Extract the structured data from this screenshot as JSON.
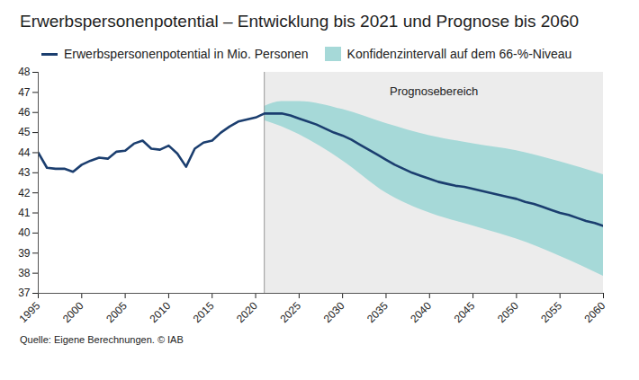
{
  "chart_data": {
    "type": "line",
    "title": "Erwerbspersonenpotential – Entwicklung bis 2021 und Prognose bis 2060",
    "caption": "Quelle: Eigene Berechnungen. © IAB",
    "x": [
      1995,
      1996,
      1997,
      1998,
      1999,
      2000,
      2001,
      2002,
      2003,
      2004,
      2005,
      2006,
      2007,
      2008,
      2009,
      2010,
      2011,
      2012,
      2013,
      2014,
      2015,
      2016,
      2017,
      2018,
      2019,
      2020,
      2021,
      2022,
      2023,
      2024,
      2025,
      2026,
      2027,
      2028,
      2029,
      2030,
      2031,
      2032,
      2033,
      2034,
      2035,
      2036,
      2037,
      2038,
      2039,
      2040,
      2041,
      2042,
      2043,
      2044,
      2045,
      2046,
      2047,
      2048,
      2049,
      2050,
      2051,
      2052,
      2053,
      2054,
      2055,
      2056,
      2057,
      2058,
      2059,
      2060
    ],
    "series": [
      {
        "name": "Erwerbspersonenpotential in Mio. Personen",
        "color": "#1b3e6f",
        "values": [
          44.0,
          43.25,
          43.2,
          43.2,
          43.05,
          43.4,
          43.6,
          43.75,
          43.7,
          44.05,
          44.1,
          44.45,
          44.6,
          44.2,
          44.15,
          44.35,
          43.95,
          43.3,
          44.2,
          44.5,
          44.6,
          45.0,
          45.3,
          45.55,
          45.65,
          45.75,
          45.95,
          45.95,
          45.95,
          45.85,
          45.7,
          45.55,
          45.4,
          45.2,
          45.0,
          44.85,
          44.65,
          44.4,
          44.15,
          43.9,
          43.65,
          43.4,
          43.2,
          43.0,
          42.85,
          42.7,
          42.55,
          42.45,
          42.35,
          42.3,
          42.2,
          42.1,
          42.0,
          41.9,
          41.8,
          41.7,
          41.55,
          41.45,
          41.3,
          41.15,
          41.0,
          40.9,
          40.75,
          40.6,
          40.5,
          40.35
        ]
      }
    ],
    "confidence_band": {
      "name": "Konfidenzintervall auf dem 66-%-Niveau",
      "color": "#a6d9d8",
      "x": [
        2021,
        2023,
        2025,
        2030,
        2035,
        2040,
        2045,
        2050,
        2055,
        2060
      ],
      "lower": [
        45.6,
        45.3,
        44.9,
        43.6,
        42.0,
        41.0,
        40.35,
        39.7,
        38.85,
        37.85
      ],
      "upper": [
        46.3,
        46.55,
        46.55,
        46.15,
        45.45,
        44.85,
        44.45,
        44.1,
        43.55,
        42.9
      ]
    },
    "annotations": [
      {
        "text": "Prognosebereich",
        "x_start": 2021,
        "x_end": 2060
      }
    ],
    "xlim": [
      1995,
      2060
    ],
    "xticks": [
      1995,
      2000,
      2005,
      2010,
      2015,
      2020,
      2025,
      2030,
      2035,
      2040,
      2045,
      2050,
      2055,
      2060
    ],
    "ylim": [
      37,
      48
    ],
    "yticks": [
      37,
      38,
      39,
      40,
      41,
      42,
      43,
      44,
      45,
      46,
      47,
      48
    ],
    "grid": false
  }
}
